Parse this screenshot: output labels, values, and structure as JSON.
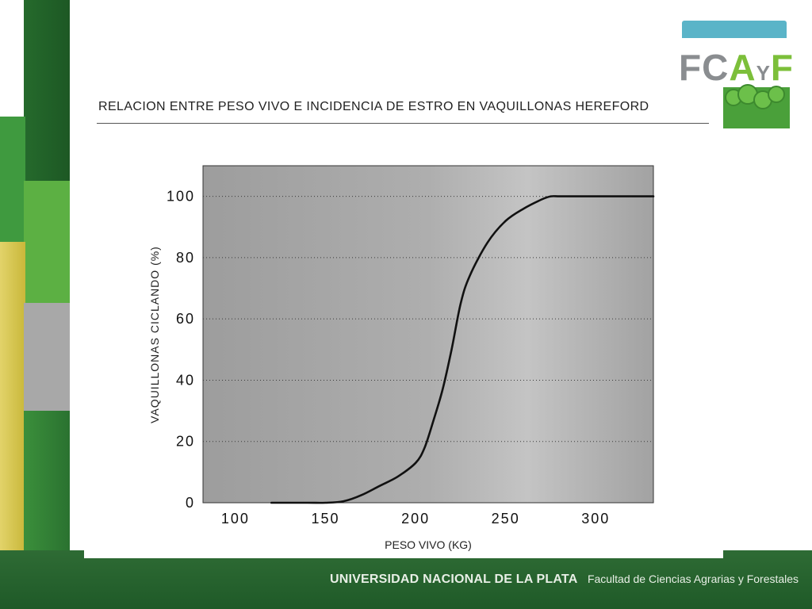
{
  "slide_title": "RELACION ENTRE PESO VIVO E INCIDENCIA DE ESTRO EN VAQUILLONAS HEREFORD",
  "logo": {
    "text_f": "F",
    "text_c": "C",
    "text_a": "A",
    "text_y": "Y",
    "text_f2": "F"
  },
  "footer": {
    "university": "UNIVERSIDAD NACIONAL DE LA PLATA",
    "faculty": "Facultad de Ciencias Agrarias y Forestales"
  },
  "colors": {
    "dark_green": "#2e6b34",
    "mid_green": "#3f9a3f",
    "light_green": "#7cbf3a",
    "yellow": "#d8c44a",
    "gray": "#a8a8a8",
    "plot_bg": "#a7a7a7",
    "logo_blue": "#5ab4c8"
  },
  "chart_data": {
    "type": "line",
    "title": "RELACION ENTRE PESO VIVO E INCIDENCIA DE ESTRO EN VAQUILLONAS HEREFORD",
    "xlabel": "PESO VIVO (KG)",
    "ylabel": "VAQUILLONAS CICLANDO (%)",
    "xlim": [
      82,
      332
    ],
    "ylim": [
      0,
      110
    ],
    "xticks": [
      100,
      150,
      200,
      250,
      300
    ],
    "yticks": [
      0,
      20,
      40,
      60,
      80,
      100
    ],
    "grid": "horizontal dotted",
    "series": [
      {
        "x": [
          120,
          140,
          150,
          160,
          170,
          180,
          190,
          200,
          205,
          210,
          215,
          220,
          225,
          230,
          240,
          250,
          260,
          270,
          275,
          280,
          290,
          300,
          320,
          332
        ],
        "y": [
          0,
          0,
          0,
          0.5,
          2.5,
          5.5,
          8.5,
          13,
          18,
          27,
          37,
          50,
          65,
          74,
          85,
          92,
          96,
          99,
          100,
          100,
          100,
          100,
          100,
          100
        ]
      }
    ]
  }
}
